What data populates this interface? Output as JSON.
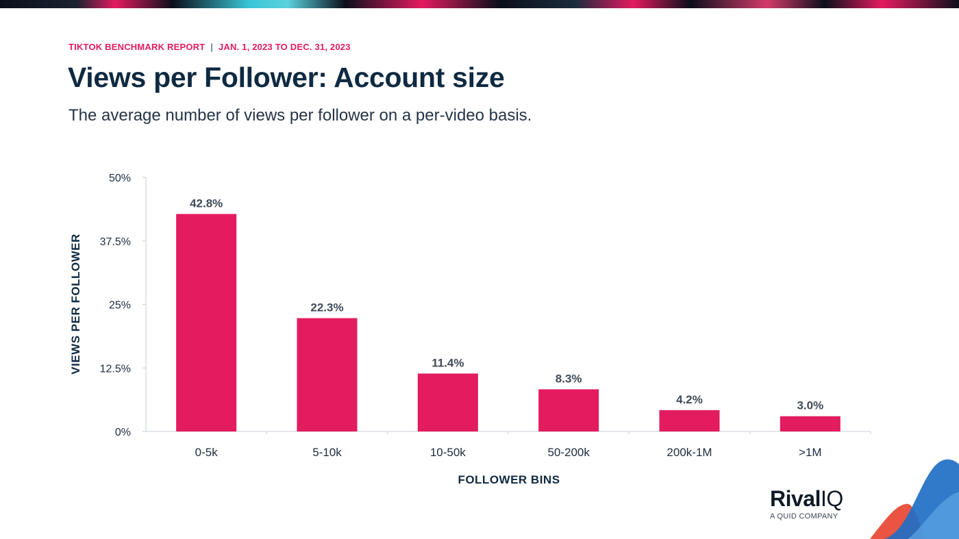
{
  "header": {
    "report_name": "TIKTOK BENCHMARK REPORT",
    "separator": "|",
    "date_range": "JAN. 1, 2023 TO DEC. 31, 2023",
    "title": "Views per Follower: Account size",
    "subtitle": "The average number of views per follower on a per-video basis."
  },
  "chart_data": {
    "type": "bar",
    "categories": [
      "0-5k",
      "5-10k",
      "10-50k",
      "50-200k",
      "200k-1M",
      ">1M"
    ],
    "values": [
      42.8,
      22.3,
      11.4,
      8.3,
      4.2,
      3.0
    ],
    "data_labels": [
      "42.8%",
      "22.3%",
      "11.4%",
      "8.3%",
      "4.2%",
      "3.0%"
    ],
    "ylim": [
      0,
      50
    ],
    "yticks": [
      0,
      12.5,
      25,
      37.5,
      50
    ],
    "ytick_labels": [
      "0%",
      "12.5%",
      "25%",
      "37.5%",
      "50%"
    ],
    "xlabel": "FOLLOWER BINS",
    "ylabel": "VIEWS PER FOLLOWER",
    "bar_color": "#e31b5f",
    "grid": false
  },
  "brand": {
    "name_bold": "Rival",
    "name_light": "IQ",
    "tagline": "A QUID COMPANY",
    "colors": {
      "blue": "#1f6fc4",
      "red": "#e8412f",
      "pink": "#e31b5f"
    }
  }
}
